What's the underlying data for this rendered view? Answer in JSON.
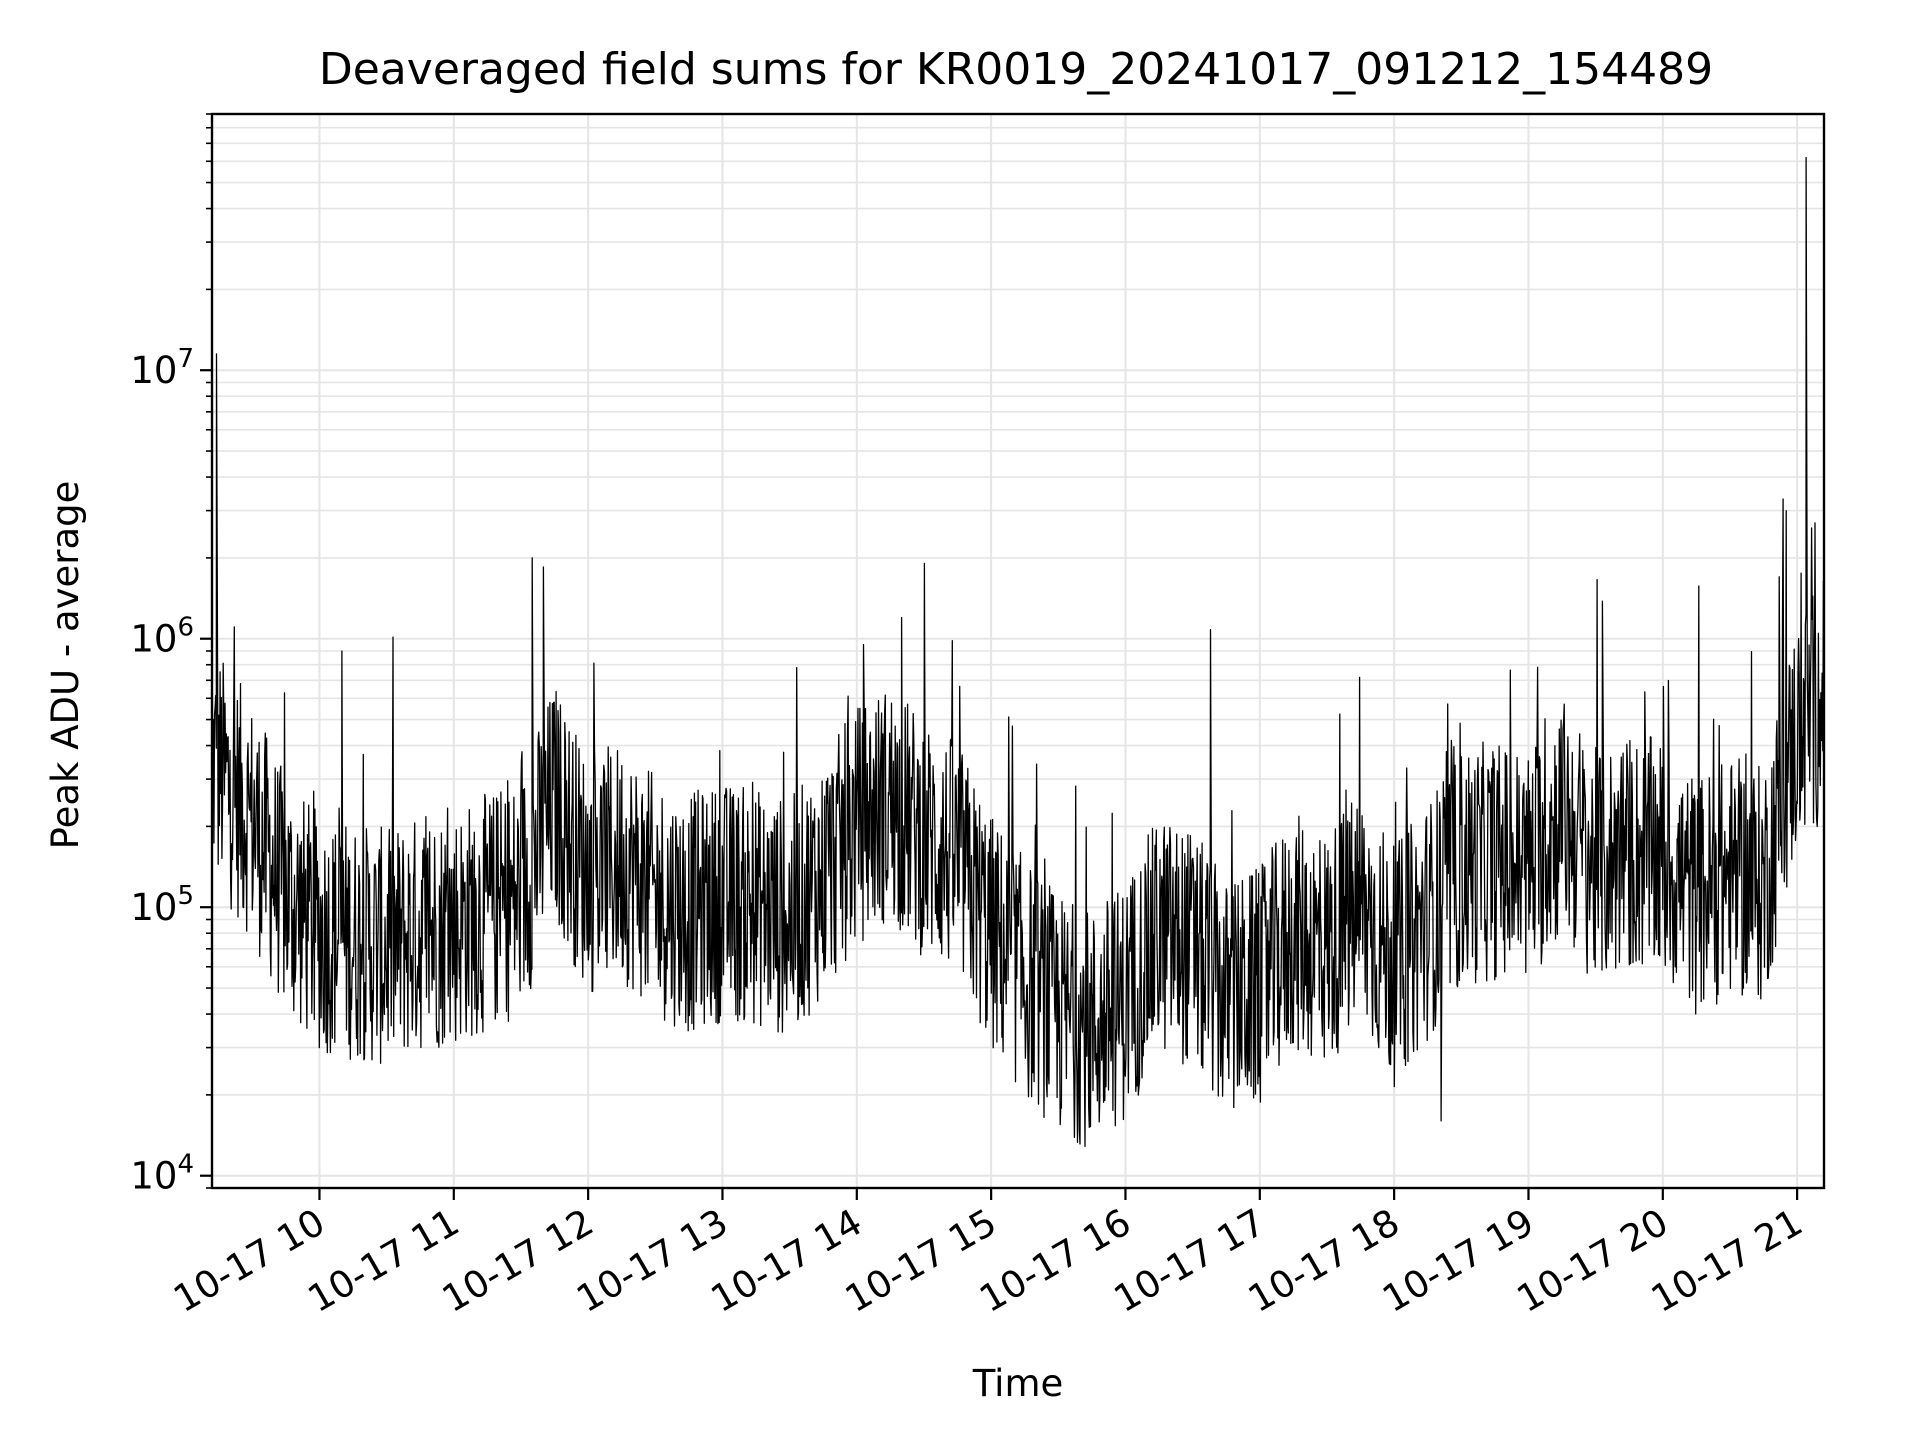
{
  "chart_data": {
    "type": "line",
    "title": "Deaveraged field sums for KR0019_20241017_091212_154489",
    "xlabel": "Time",
    "ylabel": "Peak ADU - average",
    "y_scale": "log",
    "ylim": [
      9000,
      90000000
    ],
    "xlim": [
      "2024-10-17 09:12",
      "2024-10-17 21:12"
    ],
    "grid": true,
    "grid_color": "#e5e5e5",
    "line_color": "#000000",
    "x_ticks": [
      {
        "value": "2024-10-17 10:00",
        "label": "10-17 10"
      },
      {
        "value": "2024-10-17 11:00",
        "label": "10-17 11"
      },
      {
        "value": "2024-10-17 12:00",
        "label": "10-17 12"
      },
      {
        "value": "2024-10-17 13:00",
        "label": "10-17 13"
      },
      {
        "value": "2024-10-17 14:00",
        "label": "10-17 14"
      },
      {
        "value": "2024-10-17 15:00",
        "label": "10-17 15"
      },
      {
        "value": "2024-10-17 16:00",
        "label": "10-17 16"
      },
      {
        "value": "2024-10-17 17:00",
        "label": "10-17 17"
      },
      {
        "value": "2024-10-17 18:00",
        "label": "10-17 18"
      },
      {
        "value": "2024-10-17 19:00",
        "label": "10-17 19"
      },
      {
        "value": "2024-10-17 20:00",
        "label": "10-17 20"
      },
      {
        "value": "2024-10-17 21:00",
        "label": "10-17 21"
      }
    ],
    "y_ticks": [
      {
        "value": 10000,
        "label_base": "10",
        "label_exp": "4"
      },
      {
        "value": 100000,
        "label_base": "10",
        "label_exp": "5"
      },
      {
        "value": 1000000,
        "label_base": "10",
        "label_exp": "6"
      },
      {
        "value": 10000000,
        "label_base": "10",
        "label_exp": "7"
      }
    ],
    "series": [
      {
        "x": [
          "2024-10-17 09:12",
          "2024-10-17 09:30",
          "2024-10-17 09:45",
          "2024-10-17 10:00",
          "2024-10-17 10:15",
          "2024-10-17 10:30",
          "2024-10-17 10:45",
          "2024-10-17 11:00",
          "2024-10-17 11:15",
          "2024-10-17 11:30",
          "2024-10-17 11:45",
          "2024-10-17 12:00",
          "2024-10-17 12:15",
          "2024-10-17 12:30",
          "2024-10-17 12:45",
          "2024-10-17 13:00",
          "2024-10-17 13:15",
          "2024-10-17 13:30",
          "2024-10-17 13:45",
          "2024-10-17 14:00",
          "2024-10-17 14:15",
          "2024-10-17 14:30",
          "2024-10-17 14:45",
          "2024-10-17 15:00",
          "2024-10-17 15:15",
          "2024-10-17 15:30",
          "2024-10-17 15:45",
          "2024-10-17 16:00",
          "2024-10-17 16:15",
          "2024-10-17 16:30",
          "2024-10-17 16:45",
          "2024-10-17 17:00",
          "2024-10-17 17:15",
          "2024-10-17 17:30",
          "2024-10-17 17:45",
          "2024-10-17 18:00",
          "2024-10-17 18:15",
          "2024-10-17 18:30",
          "2024-10-17 18:45",
          "2024-10-17 19:00",
          "2024-10-17 19:15",
          "2024-10-17 19:30",
          "2024-10-17 19:45",
          "2024-10-17 20:00",
          "2024-10-17 20:15",
          "2024-10-17 20:30",
          "2024-10-17 20:45",
          "2024-10-17 21:00",
          "2024-10-17 21:12"
        ],
        "y": [
          350000,
          210000,
          110000,
          80000,
          75000,
          70000,
          80000,
          85000,
          95000,
          110000,
          250000,
          130000,
          150000,
          110000,
          95000,
          105000,
          100000,
          90000,
          130000,
          200000,
          250000,
          180000,
          150000,
          80000,
          55000,
          40000,
          35000,
          45000,
          80000,
          70000,
          45000,
          50000,
          80000,
          70000,
          100000,
          60000,
          90000,
          140000,
          150000,
          140000,
          220000,
          140000,
          160000,
          150000,
          110000,
          130000,
          120000,
          450000,
          600000
        ],
        "peaks": [
          {
            "x": "2024-10-17 09:14",
            "y": 11500000
          },
          {
            "x": "2024-10-17 10:10",
            "y": 900000
          },
          {
            "x": "2024-10-17 11:35",
            "y": 2000000
          },
          {
            "x": "2024-10-17 11:40",
            "y": 1850000
          },
          {
            "x": "2024-10-17 14:03",
            "y": 950000
          },
          {
            "x": "2024-10-17 14:20",
            "y": 1200000
          },
          {
            "x": "2024-10-17 16:38",
            "y": 1080000
          },
          {
            "x": "2024-10-17 18:21",
            "y": 16000
          },
          {
            "x": "2024-10-17 19:33",
            "y": 1380000
          },
          {
            "x": "2024-10-17 20:52",
            "y": 1700000
          },
          {
            "x": "2024-10-17 21:04",
            "y": 62000000
          },
          {
            "x": "2024-10-17 21:08",
            "y": 2700000
          }
        ]
      }
    ]
  }
}
